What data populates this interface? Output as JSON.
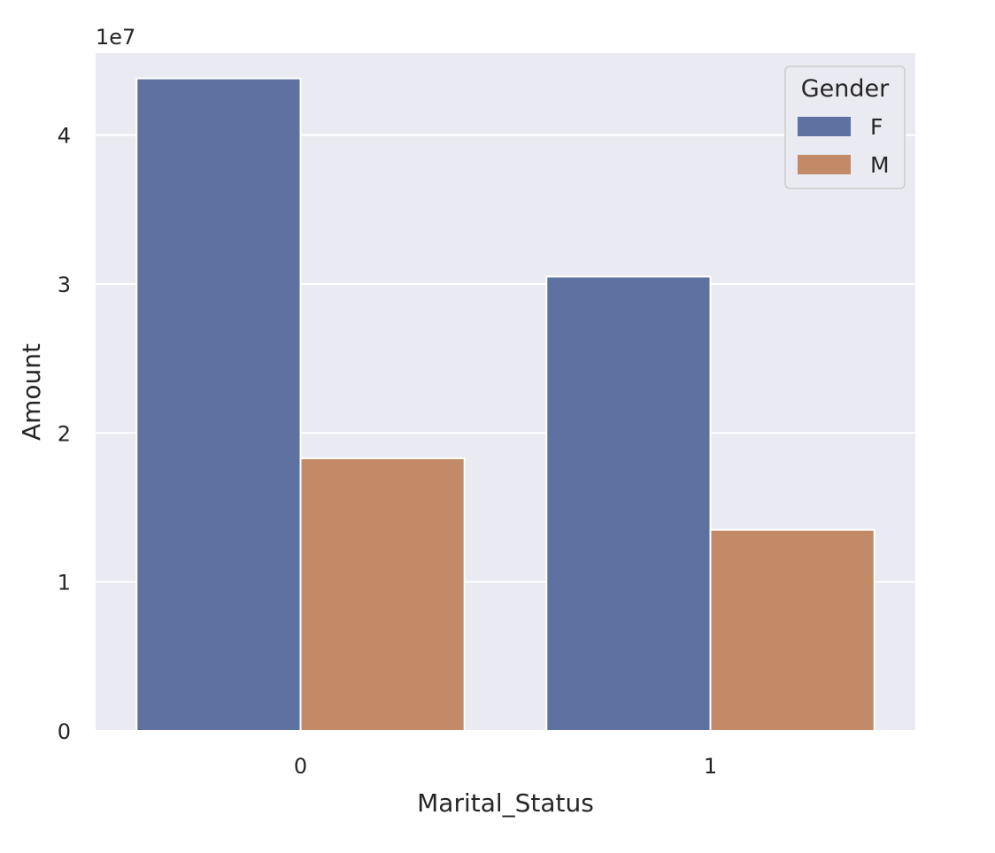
{
  "chart_data": {
    "type": "bar",
    "categories": [
      "0",
      "1"
    ],
    "series": [
      {
        "name": "F",
        "values": [
          43800000,
          30500000
        ],
        "color": "#5e72a1"
      },
      {
        "name": "M",
        "values": [
          18300000,
          13500000
        ],
        "color": "#c28a66"
      }
    ],
    "xlabel": "Marital_Status",
    "ylabel": "Amount",
    "ylim": [
      0,
      45500000
    ],
    "y_ticks": [
      0,
      1,
      2,
      3,
      4
    ],
    "y_tick_scale": 10000000,
    "y_offset_label": "1e7",
    "legend": {
      "title": "Gender",
      "position": "top-right"
    },
    "grid": true,
    "style": {
      "plot_bg": "#eaeaf2",
      "grid_color": "#ffffff"
    }
  }
}
